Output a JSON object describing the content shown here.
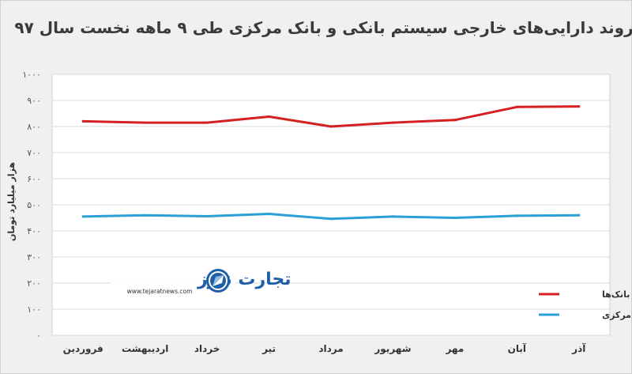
{
  "chart_data": {
    "type": "line",
    "title": "روند دارایی‌های خارجی سیستم بانکی و بانک مرکزی طی ۹ ماهه نخست سال ۹۷",
    "ylabel": "هزار میلیارد تومان",
    "xlabel": "",
    "ylim": [
      0,
      1000
    ],
    "yticks": [
      0,
      100,
      200,
      300,
      400,
      500,
      600,
      700,
      800,
      900,
      1000
    ],
    "ytick_labels": [
      "۰",
      "۱۰۰",
      "۲۰۰",
      "۳۰۰",
      "۴۰۰",
      "۵۰۰",
      "۶۰۰",
      "۷۰۰",
      "۸۰۰",
      "۹۰۰",
      "۱۰۰۰"
    ],
    "categories": [
      "فروردین",
      "اردیبهشت",
      "خرداد",
      "تیر",
      "مرداد",
      "شهریور",
      "مهر",
      "آبان",
      "آذر"
    ],
    "grid": true,
    "legend_position": "right",
    "series": [
      {
        "name": "بانک‌ها",
        "color": "#d42020",
        "values": [
          820,
          815,
          815,
          838,
          800,
          815,
          825,
          875,
          877
        ]
      },
      {
        "name": "بانک مرکزی",
        "color": "#2aa0d6",
        "values": [
          455,
          460,
          456,
          465,
          446,
          455,
          450,
          458,
          460
        ]
      }
    ]
  },
  "watermark": {
    "brand": "تجارت نیوز",
    "site": "www.tejaratnews.com"
  }
}
